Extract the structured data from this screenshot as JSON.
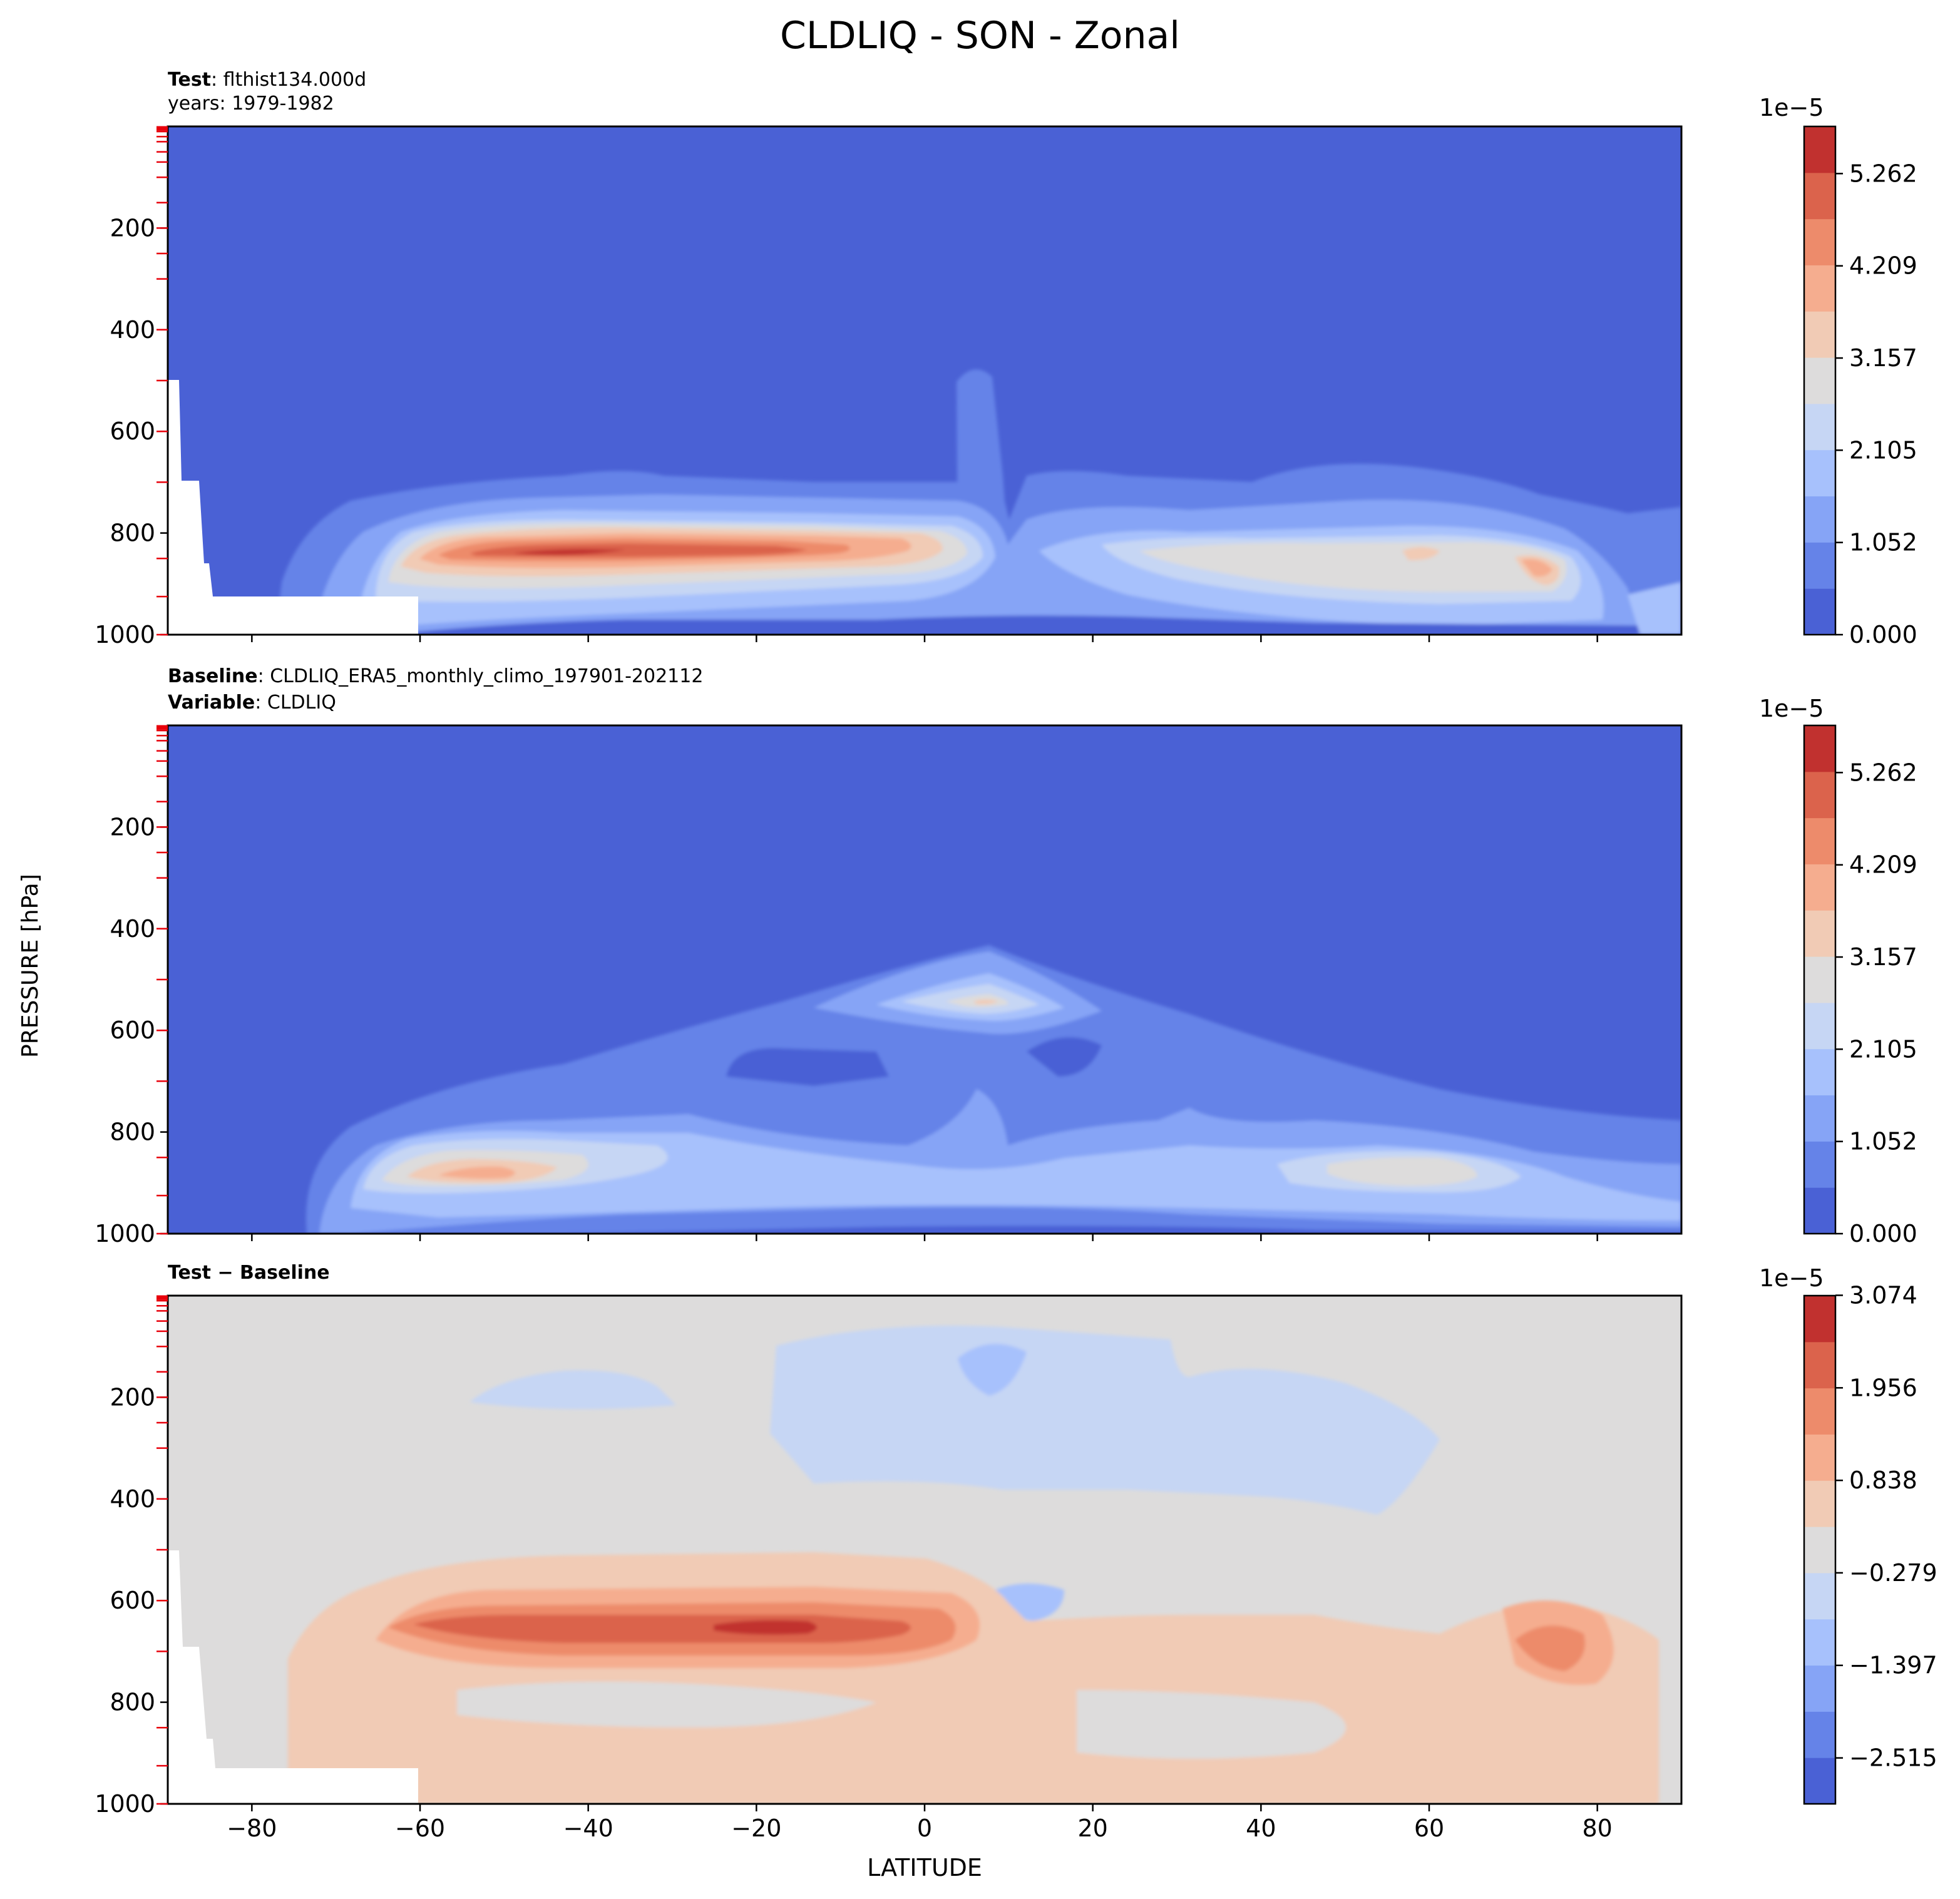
{
  "figure": {
    "suptitle": "CLDLIQ - SON - Zonal",
    "ylabel": "PRESSURE [hPa]",
    "xlabel": "LATITUDE"
  },
  "colors": {
    "bins": [
      "#4a61d5",
      "#6583e8",
      "#86a4f6",
      "#a7c1fc",
      "#c6d6f4",
      "#dddcdc",
      "#f1cbb5",
      "#f5ad8f",
      "#ed8b6b",
      "#db634c",
      "#c1312f"
    ],
    "panel_test": "#4a61d5",
    "panel_diff": "#dddcdc",
    "grid_tick": "#e8000b"
  },
  "panels": [
    {
      "title_bold_1": "Test",
      "title_text_1": ": flthist134.000d",
      "title_line_2": "years: 1979-1982",
      "title_bold_2": "",
      "title_text_2": ""
    },
    {
      "title_bold_1": "Baseline",
      "title_text_1": ": CLDLIQ_ERA5_monthly_climo_197901-202112",
      "title_line_2": "",
      "title_bold_2": "Variable",
      "title_text_2": ": CLDLIQ"
    },
    {
      "title_bold_1": "Test − Baseline",
      "title_text_1": "",
      "title_line_2": "",
      "title_bold_2": "",
      "title_text_2": ""
    }
  ],
  "chart_data": [
    {
      "type": "contourf",
      "panel": "test",
      "variable": "CLDLIQ",
      "x": {
        "label": "",
        "range": [
          -90,
          90
        ],
        "ticks": [
          -80,
          -60,
          -40,
          -20,
          0,
          20,
          40,
          60,
          80
        ],
        "tick_labels_shown": false
      },
      "y": {
        "label": "PRESSURE [hPa]",
        "range": [
          1000,
          0
        ],
        "ticks": [
          200,
          400,
          600,
          800,
          1000
        ]
      },
      "colorbar": {
        "multiplier": "1e−5",
        "ticks": [
          "0.000",
          "1.052",
          "2.105",
          "3.157",
          "4.209",
          "5.262"
        ],
        "range": [
          0,
          5.8
        ],
        "levels": 11
      },
      "features": [
        {
          "desc": "low-level liquid cloud band",
          "lat_range": [
            -65,
            5
          ],
          "pressure_range": [
            780,
            950
          ],
          "max_value": 5.5
        },
        {
          "desc": "northern low-level band",
          "lat_range": [
            20,
            90
          ],
          "pressure_range": [
            790,
            950
          ],
          "max_value": 3.7
        },
        {
          "desc": "tropical column",
          "lat_range": [
            3,
            9
          ],
          "pressure_range": [
            480,
            720
          ],
          "max_value": 1.0
        },
        {
          "desc": "masked topography (Antarctica)",
          "lat_range": [
            -90,
            -60
          ],
          "pressure_range": [
            500,
            1000
          ]
        }
      ]
    },
    {
      "type": "contourf",
      "panel": "baseline",
      "variable": "CLDLIQ",
      "x": {
        "label": "",
        "range": [
          -90,
          90
        ],
        "ticks": [
          -80,
          -60,
          -40,
          -20,
          0,
          20,
          40,
          60,
          80
        ],
        "tick_labels_shown": false
      },
      "y": {
        "label": "PRESSURE [hPa]",
        "range": [
          1000,
          0
        ],
        "ticks": [
          200,
          400,
          600,
          800,
          1000
        ]
      },
      "colorbar": {
        "multiplier": "1e−5",
        "ticks": [
          "0.000",
          "1.052",
          "2.105",
          "3.157",
          "4.209",
          "5.262"
        ],
        "range": [
          0,
          5.8
        ],
        "levels": 11
      },
      "features": [
        {
          "desc": "southern midlatitude low-level maximum",
          "lat_range": [
            -70,
            -40
          ],
          "pressure_range": [
            860,
            960
          ],
          "max_value": 4.5
        },
        {
          "desc": "tropical mid-level maximum",
          "lat_range": [
            0,
            14
          ],
          "pressure_range": [
            500,
            600
          ],
          "max_value": 3.5
        },
        {
          "desc": "northern low-level maximum",
          "lat_range": [
            45,
            65
          ],
          "pressure_range": [
            840,
            920
          ],
          "max_value": 3.1
        }
      ]
    },
    {
      "type": "contourf",
      "panel": "difference",
      "variable": "CLDLIQ",
      "x": {
        "label": "LATITUDE",
        "range": [
          -90,
          90
        ],
        "ticks": [
          -80,
          -60,
          -40,
          -20,
          0,
          20,
          40,
          60,
          80
        ],
        "tick_labels": [
          "−80",
          "−60",
          "−40",
          "−20",
          "0",
          "20",
          "40",
          "60",
          "80"
        ]
      },
      "y": {
        "label": "PRESSURE [hPa]",
        "range": [
          1000,
          0
        ],
        "ticks": [
          200,
          400,
          600,
          800,
          1000
        ]
      },
      "colorbar": {
        "multiplier": "1e−5",
        "ticks": [
          "−2.515",
          "−1.397",
          "−0.279",
          "0.838",
          "1.956",
          "3.074"
        ],
        "range": [
          -3.07,
          3.07
        ],
        "levels": 11
      },
      "features": [
        {
          "desc": "positive low-level band",
          "lat_range": [
            -75,
            5
          ],
          "pressure_range": [
            790,
            920
          ],
          "max_value": 2.8
        },
        {
          "desc": "positive high-latitude maximum",
          "lat_range": [
            65,
            85
          ],
          "pressure_range": [
            780,
            900
          ],
          "max_value": 1.5
        },
        {
          "desc": "negative mid-level region",
          "lat_range": [
            -18,
            60
          ],
          "pressure_range": [
            450,
            720
          ],
          "min_value": -1.0
        }
      ]
    }
  ]
}
